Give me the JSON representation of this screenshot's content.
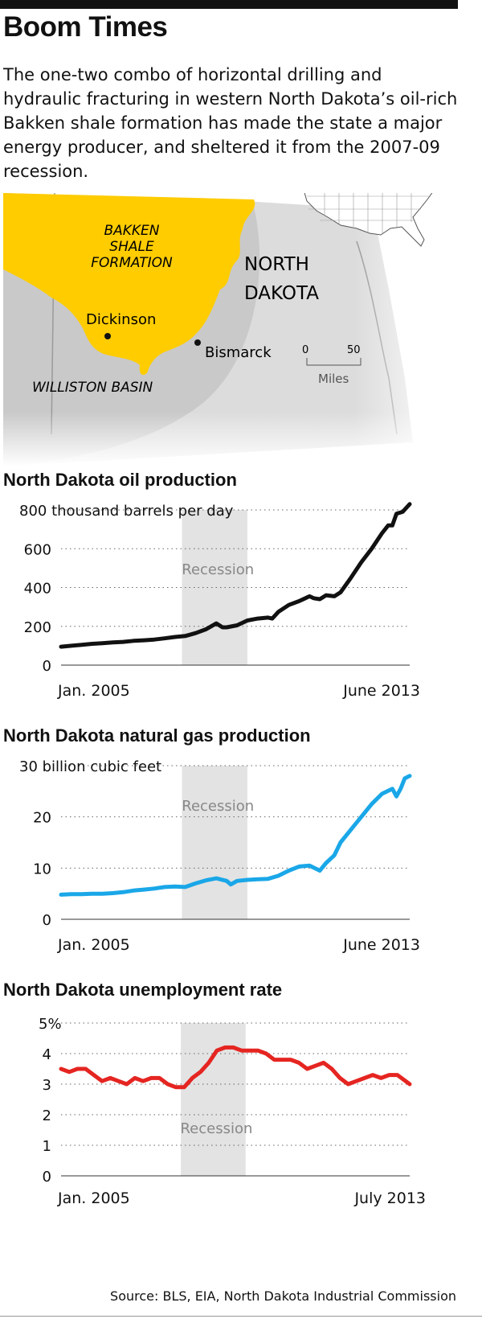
{
  "header": {
    "title": "Boom Times",
    "dek": "The one-two combo of horizontal drilling and hydraulic fracturing in western North Dakota’s oil-rich Bakken shale formation has made the state a major energy producer, and sheltered it from the 2007-09 recession."
  },
  "map": {
    "formation_line1": "BAKKEN",
    "formation_line2": "SHALE",
    "formation_line3": "FORMATION",
    "state_line1": "NORTH",
    "state_line2": "DAKOTA",
    "city1": "Dickinson",
    "city2": "Bismarck",
    "basin": "WILLISTON BASIN",
    "scale_start": "0",
    "scale_end": "50",
    "scale_unit": "Miles",
    "colors": {
      "formation": "#FFCC00",
      "state": "#DCDCDC",
      "basin": "#C9C9C9"
    }
  },
  "recession_label": "Recession",
  "source": "Source: BLS, EIA, North Dakota Industrial Commission",
  "chart_data": [
    {
      "type": "line",
      "title": "North Dakota oil production",
      "ylabel": "thousand barrels per day",
      "ylim": [
        0,
        800
      ],
      "yticks": [
        "0",
        "200",
        "400",
        "600",
        "800 thousand barrels per day"
      ],
      "ytick_values": [
        0,
        200,
        400,
        600,
        800
      ],
      "x_start_label": "Jan. 2005",
      "x_end_label": "June 2013",
      "x_range": [
        2005.0,
        2013.42
      ],
      "recession": [
        2007.92,
        2009.5
      ],
      "color": "#111111",
      "x": [
        2005.0,
        2005.25,
        2005.5,
        2005.75,
        2006.0,
        2006.25,
        2006.5,
        2006.75,
        2007.0,
        2007.25,
        2007.5,
        2007.75,
        2008.0,
        2008.25,
        2008.5,
        2008.75,
        2008.9,
        2009.0,
        2009.25,
        2009.5,
        2009.75,
        2010.0,
        2010.1,
        2010.25,
        2010.5,
        2010.75,
        2011.0,
        2011.1,
        2011.25,
        2011.4,
        2011.6,
        2011.75,
        2012.0,
        2012.25,
        2012.5,
        2012.75,
        2012.9,
        2013.0,
        2013.1,
        2013.25,
        2013.42
      ],
      "values": [
        95,
        100,
        105,
        110,
        113,
        117,
        120,
        125,
        128,
        132,
        138,
        145,
        150,
        165,
        185,
        215,
        195,
        195,
        205,
        230,
        240,
        245,
        240,
        275,
        310,
        330,
        355,
        345,
        340,
        360,
        355,
        375,
        450,
        530,
        600,
        680,
        720,
        720,
        780,
        790,
        830
      ]
    },
    {
      "type": "line",
      "title": "North Dakota natural gas production",
      "ylabel": "billion cubic feet",
      "ylim": [
        0,
        30
      ],
      "yticks": [
        "0",
        "10",
        "20",
        "30 billion cubic feet"
      ],
      "ytick_values": [
        0,
        10,
        20,
        30
      ],
      "x_start_label": "Jan. 2005",
      "x_end_label": "June 2013",
      "x_range": [
        2005.0,
        2013.42
      ],
      "recession": [
        2007.92,
        2009.5
      ],
      "color": "#1AA7E8",
      "x": [
        2005.0,
        2005.25,
        2005.5,
        2005.75,
        2006.0,
        2006.25,
        2006.5,
        2006.75,
        2007.0,
        2007.25,
        2007.5,
        2007.75,
        2008.0,
        2008.25,
        2008.5,
        2008.75,
        2009.0,
        2009.1,
        2009.25,
        2009.5,
        2009.75,
        2010.0,
        2010.25,
        2010.5,
        2010.75,
        2011.0,
        2011.25,
        2011.4,
        2011.6,
        2011.75,
        2012.0,
        2012.25,
        2012.5,
        2012.75,
        2013.0,
        2013.1,
        2013.2,
        2013.3,
        2013.42
      ],
      "values": [
        4.8,
        4.9,
        4.9,
        5.0,
        5.0,
        5.1,
        5.3,
        5.6,
        5.8,
        6.0,
        6.3,
        6.4,
        6.3,
        7.0,
        7.6,
        8.0,
        7.5,
        6.8,
        7.5,
        7.7,
        7.8,
        7.9,
        8.5,
        9.5,
        10.3,
        10.5,
        9.5,
        11.0,
        12.5,
        15.0,
        17.5,
        20.0,
        22.5,
        24.5,
        25.5,
        24.0,
        25.5,
        27.5,
        28.0
      ]
    },
    {
      "type": "line",
      "title": "North Dakota unemployment rate",
      "ylabel": "%",
      "ylim": [
        0,
        5
      ],
      "yticks": [
        "0",
        "1",
        "2",
        "3",
        "4",
        "5%"
      ],
      "ytick_values": [
        0,
        1,
        2,
        3,
        4,
        5
      ],
      "x_start_label": "Jan. 2005",
      "x_end_label": "July 2013",
      "x_range": [
        2005.0,
        2013.5
      ],
      "recession": [
        2007.92,
        2009.5
      ],
      "color": "#E52521",
      "x": [
        2005.0,
        2005.2,
        2005.4,
        2005.6,
        2005.8,
        2006.0,
        2006.2,
        2006.4,
        2006.6,
        2006.8,
        2007.0,
        2007.2,
        2007.4,
        2007.6,
        2007.8,
        2008.0,
        2008.2,
        2008.4,
        2008.6,
        2008.8,
        2009.0,
        2009.2,
        2009.4,
        2009.6,
        2009.8,
        2010.0,
        2010.2,
        2010.4,
        2010.6,
        2010.8,
        2011.0,
        2011.2,
        2011.4,
        2011.6,
        2011.8,
        2012.0,
        2012.2,
        2012.4,
        2012.6,
        2012.8,
        2013.0,
        2013.2,
        2013.5
      ],
      "values": [
        3.5,
        3.4,
        3.5,
        3.5,
        3.3,
        3.1,
        3.2,
        3.1,
        3.0,
        3.2,
        3.1,
        3.2,
        3.2,
        3.0,
        2.9,
        2.9,
        3.2,
        3.4,
        3.7,
        4.1,
        4.2,
        4.2,
        4.1,
        4.1,
        4.1,
        4.0,
        3.8,
        3.8,
        3.8,
        3.7,
        3.5,
        3.6,
        3.7,
        3.5,
        3.2,
        3.0,
        3.1,
        3.2,
        3.3,
        3.2,
        3.3,
        3.3,
        3.0
      ]
    }
  ]
}
